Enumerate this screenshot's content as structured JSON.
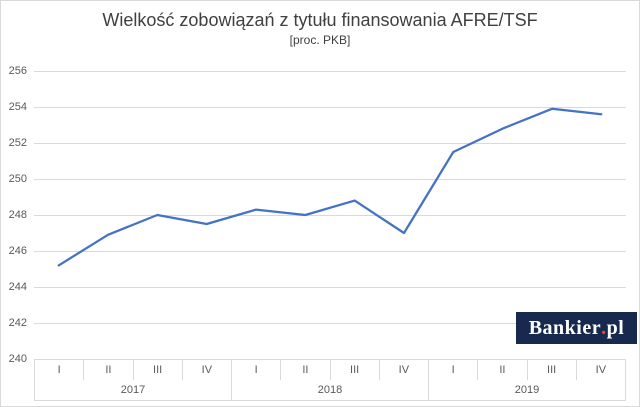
{
  "title": "Wielkość zobowiązań z tytułu finansowania AFRE/TSF",
  "subtitle": "[proc. PKB]",
  "branding": {
    "logo_text": "Bankier",
    "logo_dot": ".",
    "logo_suffix": "pl"
  },
  "colors": {
    "line": "#4472c4",
    "gridline": "#d9d9d9",
    "axis_text": "#595959",
    "title_text": "#404040",
    "logo_background": "#172a4d",
    "logo_text_color": "#ffffff",
    "logo_dot_color": "#e4502e"
  },
  "chart_data": {
    "type": "line",
    "title": "Wielkość zobowiązań z tytułu finansowania AFRE/TSF",
    "subtitle": "[proc. PKB]",
    "unit": "proc. PKB",
    "categories": [
      "I 2017",
      "II 2017",
      "III 2017",
      "IV 2017",
      "I 2018",
      "II 2018",
      "III 2018",
      "IV 2018",
      "I 2019",
      "II 2019",
      "III 2019",
      "IV 2019"
    ],
    "x_groups": [
      {
        "year": "2017",
        "quarters": [
          "I",
          "II",
          "III",
          "IV"
        ]
      },
      {
        "year": "2018",
        "quarters": [
          "I",
          "II",
          "III",
          "IV"
        ]
      },
      {
        "year": "2019",
        "quarters": [
          "I",
          "II",
          "III",
          "IV"
        ]
      }
    ],
    "series": [
      {
        "name": "Wielkość zobowiązań z tytułu finansowania AFRE/TSF [proc. PKB]",
        "values": [
          245.2,
          246.9,
          248.0,
          247.5,
          248.3,
          248.0,
          248.8,
          247.0,
          251.5,
          252.8,
          253.9,
          253.6
        ]
      }
    ],
    "ylim": [
      240,
      256
    ],
    "yticks": [
      240,
      242,
      244,
      246,
      248,
      250,
      252,
      254,
      256
    ],
    "xlabel": "",
    "ylabel": "",
    "grid": true,
    "legend": "none"
  }
}
